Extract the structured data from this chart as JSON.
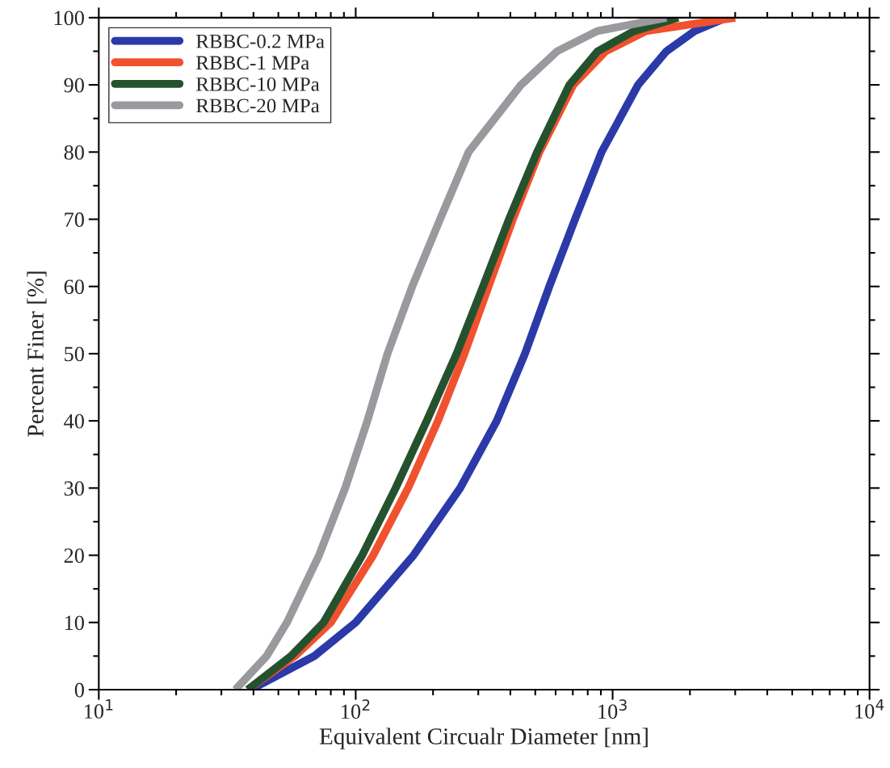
{
  "chart_data": {
    "type": "line",
    "xlabel": "Equivalent Circualr Diameter [nm]",
    "ylabel": "Percent Finer [%]",
    "log": "x",
    "xlim": [
      10,
      10000
    ],
    "xticks": [
      {
        "value": 10,
        "label": "10$^{1}$"
      },
      {
        "value": 100,
        "label": "10$^{2}$"
      },
      {
        "value": 1000,
        "label": "10$^{3}$"
      },
      {
        "value": 10000,
        "label": "10$^{4}$"
      }
    ],
    "ylim": [
      0,
      100
    ],
    "yticks": [
      0,
      10,
      20,
      30,
      40,
      50,
      60,
      70,
      80,
      90,
      100
    ],
    "grid": false,
    "legend": "top left",
    "marker": "none",
    "line_style": "solid",
    "series": [
      {
        "name": "RBBC-0.2 MPa",
        "color": "#2b3aa8",
        "x": [
          39,
          69,
          100,
          168,
          255,
          354,
          456,
          567,
          714,
          906,
          1256,
          1620,
          2085,
          2780
        ],
        "values": [
          0,
          5,
          10,
          20,
          30,
          40,
          50,
          60,
          70,
          80,
          90,
          95,
          98,
          100
        ]
      },
      {
        "name": "RBBC-1 MPa",
        "color": "#f0512e",
        "x": [
          38,
          58,
          80,
          117,
          160,
          209,
          265,
          329,
          409,
          519,
          703,
          940,
          1350,
          3000
        ],
        "values": [
          0,
          5,
          10,
          20,
          30,
          40,
          50,
          60,
          70,
          80,
          90,
          95,
          98,
          100
        ]
      },
      {
        "name": "RBBC-10 MPa",
        "color": "#25522e",
        "x": [
          38,
          56,
          75,
          106,
          143,
          189,
          247,
          313,
          395,
          508,
          679,
          875,
          1210,
          1800
        ],
        "values": [
          0,
          5,
          10,
          20,
          30,
          40,
          50,
          60,
          70,
          80,
          90,
          95,
          98,
          100
        ]
      },
      {
        "name": "RBBC-20 MPa",
        "color": "#9a9a9e",
        "x": [
          34,
          45,
          54,
          72,
          91,
          111,
          133,
          166,
          213,
          275,
          440,
          608,
          871,
          1620
        ],
        "values": [
          0,
          5,
          10,
          20,
          30,
          40,
          50,
          60,
          70,
          80,
          90,
          95,
          98,
          100
        ]
      }
    ]
  }
}
